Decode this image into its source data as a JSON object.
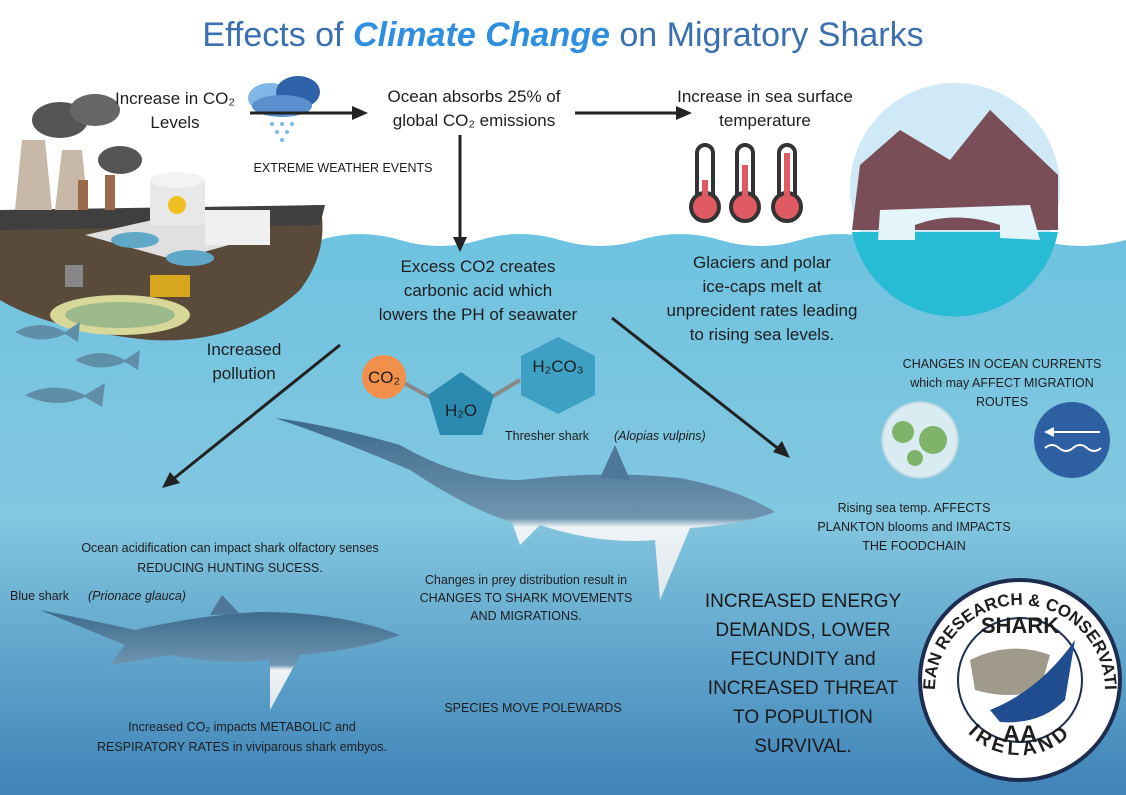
{
  "title": {
    "prefix": "Effects of",
    "emphasis": "Climate Change",
    "suffix": "on Migratory Sharks"
  },
  "co2_levels": [
    "Increase in CO₂",
    "Levels"
  ],
  "ocean_absorbs": [
    "Ocean absorbs 25% of",
    "global CO₂ emissions"
  ],
  "sea_surface": [
    "Increase in sea surface",
    "temperature"
  ],
  "extreme_weather": "EXTREME WEATHER EVENTS",
  "carbonic_acid": [
    "Excess CO2 creates",
    "carbonic acid which",
    "lowers the PH of seawater"
  ],
  "glaciers": [
    "Glaciers and polar",
    "ice-caps melt at",
    "unprecident rates leading",
    "to rising sea levels."
  ],
  "pollution": [
    "Increased",
    "pollution"
  ],
  "molecules": {
    "co2": "CO₂",
    "h2o": "H₂O",
    "h2co3": "H₂CO₃"
  },
  "thresher": {
    "name": "Thresher shark",
    "latin": "(Alopias vulpins)"
  },
  "currents": [
    "CHANGES IN OCEAN CURRENTS",
    "which may AFFECT MIGRATION",
    "ROUTES"
  ],
  "plankton": [
    "Rising sea temp. AFFECTS",
    "PLANKTON blooms and IMPACTS",
    "THE FOODCHAIN"
  ],
  "olfactory": [
    "Ocean acidification can impact shark olfactory senses",
    "REDUCING HUNTING SUCESS."
  ],
  "blue_shark": {
    "name": "Blue shark",
    "latin": "(Prionace glauca)"
  },
  "prey": [
    "Changes in prey distribution result in",
    "CHANGES  TO SHARK MOVEMENTS",
    "AND MIGRATIONS."
  ],
  "energy": [
    "INCREASED ENERGY",
    "DEMANDS, LOWER",
    "FECUNDITY and",
    "INCREASED THREAT",
    "TO POPULTION",
    "SURVIVAL."
  ],
  "polewards": "SPECIES MOVE POLEWARDS",
  "metabolic": [
    "Increased CO₂ impacts METABOLIC and",
    "RESPIRATORY RATES in viviparous shark embyos."
  ],
  "logo": {
    "ring_top": "OCEAN RESEARCH & CONSERVATION",
    "ring_bottom": "IRELAND",
    "top": "SHARK",
    "bottom": "AA"
  }
}
